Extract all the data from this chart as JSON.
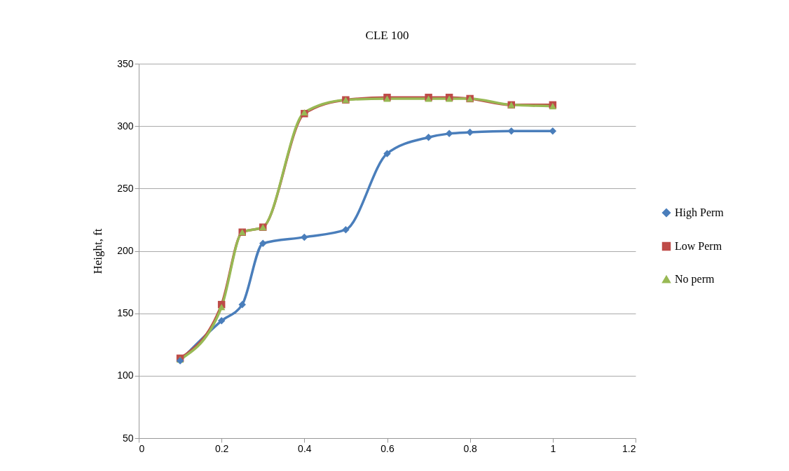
{
  "chart_data": {
    "type": "line",
    "title": "CLE 100",
    "ylabel": "Height, ft",
    "x": [
      0.1,
      0.2,
      0.25,
      0.3,
      0.4,
      0.5,
      0.6,
      0.7,
      0.75,
      0.8,
      0.9,
      1
    ],
    "series": [
      {
        "name": "High Perm",
        "color": "#4a7ebb",
        "marker": "diamond",
        "values": [
          112,
          144,
          157,
          206,
          211,
          217,
          278,
          291,
          294,
          295,
          296,
          296
        ]
      },
      {
        "name": "Low Perm",
        "color": "#be4b48",
        "marker": "square",
        "values": [
          114,
          157,
          215,
          219,
          310,
          321,
          323,
          323,
          323,
          322,
          317,
          317
        ]
      },
      {
        "name": "No perm",
        "color": "#98b954",
        "marker": "triangle",
        "values": [
          113,
          155,
          215,
          219,
          311,
          321,
          322,
          322,
          322,
          322,
          317,
          316
        ]
      }
    ],
    "xlim": [
      0,
      1.2
    ],
    "xticks": [
      0,
      0.2,
      0.4,
      0.6,
      0.8,
      1,
      1.2
    ],
    "ylim": [
      50,
      350
    ],
    "yticks": [
      50,
      100,
      150,
      200,
      250,
      300,
      350
    ],
    "grid": "y",
    "legend": "right",
    "line_style": "solid"
  }
}
